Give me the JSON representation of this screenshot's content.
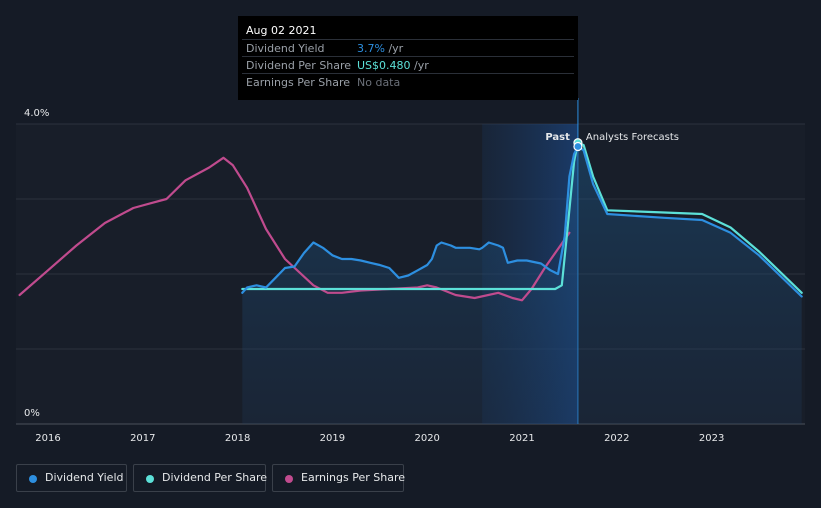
{
  "tooltip": {
    "date": "Aug 02 2021",
    "rows": [
      {
        "label": "Dividend Yield",
        "value": "3.7%",
        "unit": " /yr",
        "color": "#2d8fe0"
      },
      {
        "label": "Dividend Per Share",
        "value": "US$0.480",
        "unit": " /yr",
        "color": "#5ce0d8"
      },
      {
        "label": "Earnings Per Share",
        "value": "No data",
        "unit": "",
        "color": "#6b7079"
      }
    ]
  },
  "labels": {
    "past": "Past",
    "forecast": "Analysts Forecasts"
  },
  "legend": [
    {
      "label": "Dividend Yield",
      "color": "#2d8fe0"
    },
    {
      "label": "Dividend Per Share",
      "color": "#5ce0d8"
    },
    {
      "label": "Earnings Per Share",
      "color": "#c04b8e"
    }
  ],
  "chart_data": {
    "type": "line",
    "y_tick_labels": [
      "4.0%",
      "0%"
    ],
    "ylim": [
      0,
      4.0
    ],
    "x_tick_labels": [
      "2016",
      "2017",
      "2018",
      "2019",
      "2020",
      "2021",
      "2022",
      "2023"
    ],
    "xlim": [
      2015.7,
      2023.95
    ],
    "past_forecast_split": 2021.59,
    "forecast_band_start": 2020.58,
    "series": [
      {
        "name": "Dividend Yield",
        "color": "#2d8fe0",
        "x": [
          2018.05,
          2018.1,
          2018.2,
          2018.3,
          2018.4,
          2018.5,
          2018.6,
          2018.7,
          2018.8,
          2018.9,
          2019.0,
          2019.1,
          2019.2,
          2019.3,
          2019.4,
          2019.5,
          2019.6,
          2019.7,
          2019.8,
          2019.9,
          2020.0,
          2020.05,
          2020.1,
          2020.15,
          2020.25,
          2020.3,
          2020.35,
          2020.45,
          2020.55,
          2020.58,
          2020.65,
          2020.75,
          2020.8,
          2020.85,
          2020.95,
          2021.05,
          2021.2,
          2021.3,
          2021.38,
          2021.45,
          2021.5,
          2021.55,
          2021.59,
          2021.65,
          2021.75,
          2021.9,
          2022.5,
          2022.9,
          2023.2,
          2023.5,
          2023.95
        ],
        "y": [
          1.75,
          1.82,
          1.85,
          1.82,
          1.95,
          2.08,
          2.1,
          2.28,
          2.42,
          2.35,
          2.25,
          2.2,
          2.2,
          2.18,
          2.15,
          2.12,
          2.08,
          1.95,
          1.98,
          2.05,
          2.12,
          2.2,
          2.38,
          2.42,
          2.38,
          2.35,
          2.35,
          2.35,
          2.33,
          2.35,
          2.42,
          2.38,
          2.35,
          2.15,
          2.18,
          2.18,
          2.14,
          2.05,
          2.0,
          2.5,
          3.3,
          3.6,
          3.7,
          3.65,
          3.2,
          2.8,
          2.75,
          2.72,
          2.55,
          2.25,
          1.7
        ]
      },
      {
        "name": "Dividend Per Share",
        "color": "#5ce0d8",
        "x": [
          2018.05,
          2019.0,
          2020.0,
          2021.0,
          2021.35,
          2021.42,
          2021.48,
          2021.55,
          2021.59,
          2021.65,
          2021.75,
          2021.9,
          2022.5,
          2022.9,
          2023.2,
          2023.5,
          2023.95
        ],
        "y": [
          1.8,
          1.8,
          1.8,
          1.8,
          1.8,
          1.85,
          2.6,
          3.5,
          3.75,
          3.72,
          3.3,
          2.85,
          2.82,
          2.8,
          2.62,
          2.3,
          1.75
        ]
      },
      {
        "name": "Earnings Per Share",
        "color": "#c04b8e",
        "x": [
          2015.7,
          2016.0,
          2016.3,
          2016.6,
          2016.9,
          2017.1,
          2017.25,
          2017.45,
          2017.7,
          2017.85,
          2017.95,
          2018.1,
          2018.3,
          2018.5,
          2018.8,
          2018.95,
          2019.1,
          2019.3,
          2019.6,
          2019.9,
          2020.0,
          2020.1,
          2020.3,
          2020.5,
          2020.75,
          2020.9,
          2021.0,
          2021.1,
          2021.25,
          2021.5
        ],
        "y": [
          1.72,
          2.05,
          2.38,
          2.68,
          2.88,
          2.95,
          3.0,
          3.25,
          3.42,
          3.55,
          3.45,
          3.15,
          2.6,
          2.2,
          1.85,
          1.75,
          1.75,
          1.78,
          1.8,
          1.82,
          1.85,
          1.82,
          1.72,
          1.68,
          1.75,
          1.68,
          1.65,
          1.8,
          2.1,
          2.55
        ]
      }
    ]
  }
}
